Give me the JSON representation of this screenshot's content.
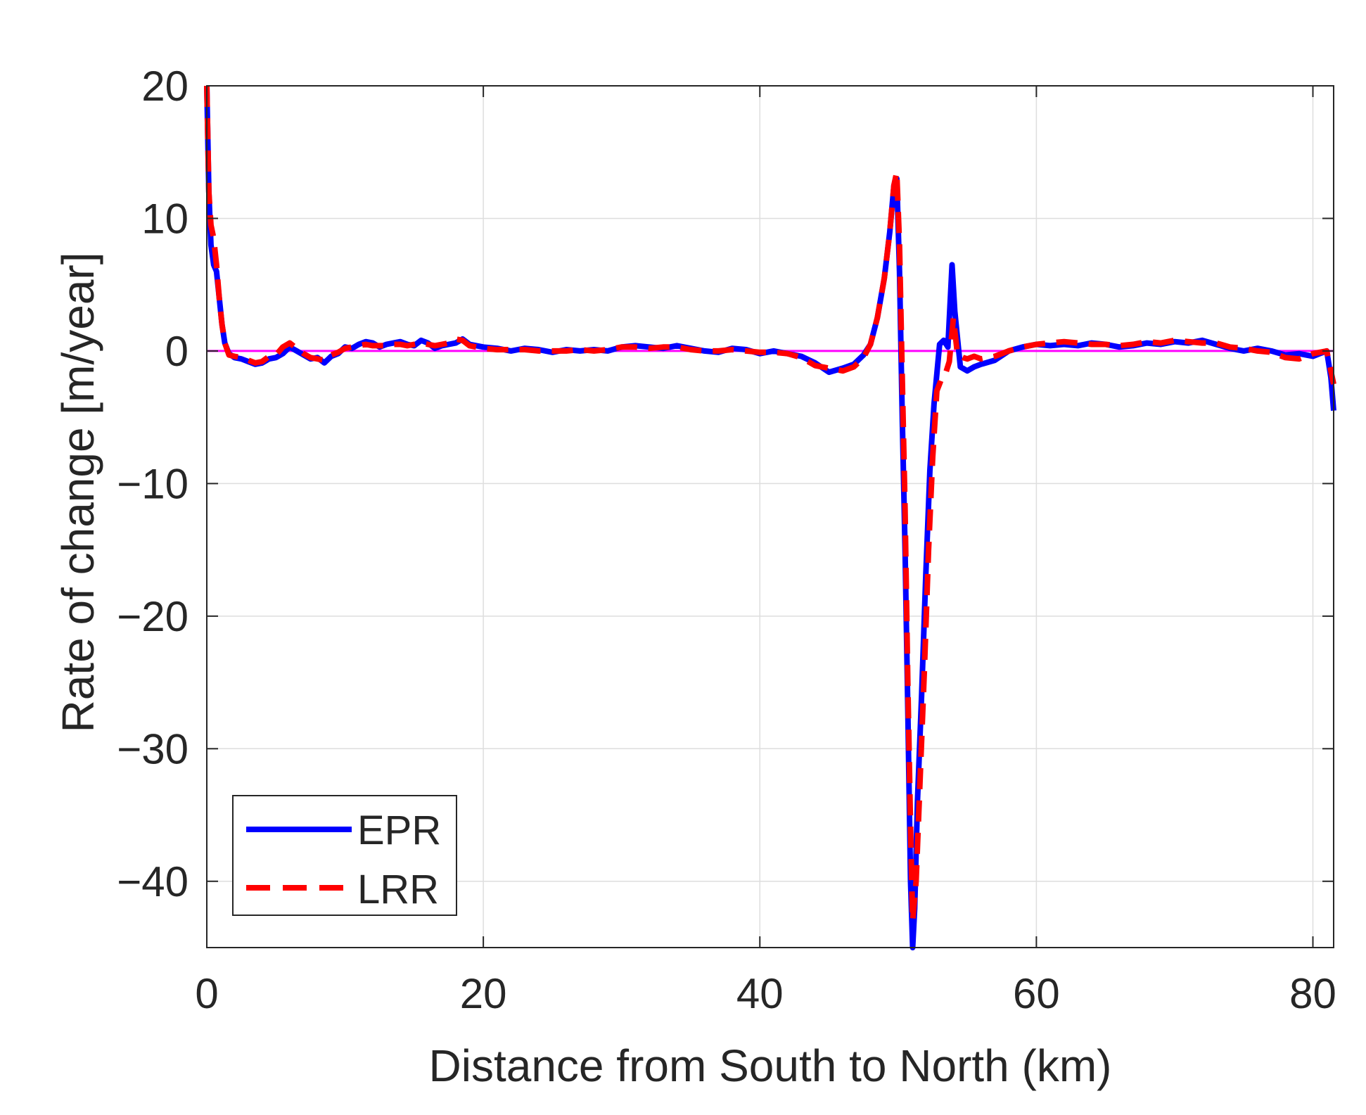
{
  "chart_data": {
    "type": "line",
    "title": "",
    "xlabel": "Distance from South to North (km)",
    "ylabel": "Rate of change [m/year]",
    "xlim": [
      0,
      81.5
    ],
    "ylim": [
      -45,
      20
    ],
    "xticks": [
      0,
      20,
      40,
      60,
      80
    ],
    "xtick_labels": [
      "0",
      "20",
      "40",
      "60",
      "80"
    ],
    "yticks": [
      20,
      10,
      0,
      -10,
      -20,
      -30,
      -40
    ],
    "ytick_labels": [
      "20",
      "10",
      "0",
      "−10",
      "−20",
      "−30",
      "−40"
    ],
    "grid": true,
    "legend_position": "bottom-left",
    "reference_line": {
      "y": 0,
      "color": "#ff00ff"
    },
    "series": [
      {
        "name": "EPR",
        "color": "#0000ff",
        "style": "solid",
        "points": [
          [
            0,
            20
          ],
          [
            0.15,
            12
          ],
          [
            0.3,
            8
          ],
          [
            0.5,
            6.5
          ],
          [
            0.7,
            6
          ],
          [
            0.9,
            4
          ],
          [
            1.1,
            2
          ],
          [
            1.3,
            0.6
          ],
          [
            1.6,
            -0.2
          ],
          [
            2,
            -0.5
          ],
          [
            2.5,
            -0.6
          ],
          [
            3,
            -0.8
          ],
          [
            3.5,
            -1
          ],
          [
            4,
            -0.9
          ],
          [
            4.5,
            -0.6
          ],
          [
            5,
            -0.5
          ],
          [
            5.5,
            -0.2
          ],
          [
            6,
            0.3
          ],
          [
            6.5,
            0
          ],
          [
            7,
            -0.3
          ],
          [
            7.5,
            -0.6
          ],
          [
            8,
            -0.5
          ],
          [
            8.5,
            -0.9
          ],
          [
            9,
            -0.4
          ],
          [
            9.5,
            -0.2
          ],
          [
            10,
            0.3
          ],
          [
            10.5,
            0.2
          ],
          [
            11,
            0.5
          ],
          [
            11.5,
            0.7
          ],
          [
            12,
            0.6
          ],
          [
            12.5,
            0.3
          ],
          [
            13,
            0.5
          ],
          [
            13.5,
            0.6
          ],
          [
            14,
            0.7
          ],
          [
            14.5,
            0.5
          ],
          [
            15,
            0.4
          ],
          [
            15.5,
            0.8
          ],
          [
            16,
            0.6
          ],
          [
            16.5,
            0.2
          ],
          [
            17,
            0.4
          ],
          [
            17.5,
            0.5
          ],
          [
            18,
            0.6
          ],
          [
            18.5,
            0.9
          ],
          [
            19,
            0.5
          ],
          [
            19.5,
            0.4
          ],
          [
            20,
            0.3
          ],
          [
            21,
            0.2
          ],
          [
            22,
            0
          ],
          [
            23,
            0.2
          ],
          [
            24,
            0.1
          ],
          [
            25,
            -0.1
          ],
          [
            26,
            0.1
          ],
          [
            27,
            0
          ],
          [
            28,
            0.1
          ],
          [
            29,
            0
          ],
          [
            30,
            0.3
          ],
          [
            31,
            0.4
          ],
          [
            32,
            0.3
          ],
          [
            33,
            0.2
          ],
          [
            34,
            0.4
          ],
          [
            35,
            0.2
          ],
          [
            36,
            0
          ],
          [
            37,
            -0.1
          ],
          [
            38,
            0.2
          ],
          [
            39,
            0.1
          ],
          [
            40,
            -0.2
          ],
          [
            41,
            0
          ],
          [
            42,
            -0.2
          ],
          [
            43,
            -0.4
          ],
          [
            44,
            -0.9
          ],
          [
            45,
            -1.6
          ],
          [
            46,
            -1.3
          ],
          [
            46.8,
            -1
          ],
          [
            47.5,
            -0.3
          ],
          [
            48,
            0.5
          ],
          [
            48.5,
            2.5
          ],
          [
            49,
            5.5
          ],
          [
            49.4,
            9
          ],
          [
            49.7,
            12.5
          ],
          [
            49.9,
            13
          ],
          [
            50.1,
            6
          ],
          [
            50.3,
            -5
          ],
          [
            50.5,
            -15
          ],
          [
            50.7,
            -27
          ],
          [
            50.9,
            -40
          ],
          [
            51.05,
            -45
          ],
          [
            51.2,
            -42
          ],
          [
            51.4,
            -34
          ],
          [
            51.7,
            -26
          ],
          [
            52,
            -17
          ],
          [
            52.3,
            -9
          ],
          [
            52.6,
            -4
          ],
          [
            53,
            0.5
          ],
          [
            53.3,
            0.8
          ],
          [
            53.6,
            0.3
          ],
          [
            53.9,
            6.5
          ],
          [
            54.1,
            3
          ],
          [
            54.5,
            -1.2
          ],
          [
            55,
            -1.5
          ],
          [
            55.5,
            -1.2
          ],
          [
            56,
            -1
          ],
          [
            57,
            -0.7
          ],
          [
            58,
            0
          ],
          [
            59,
            0.3
          ],
          [
            60,
            0.5
          ],
          [
            61,
            0.4
          ],
          [
            62,
            0.5
          ],
          [
            63,
            0.4
          ],
          [
            64,
            0.6
          ],
          [
            65,
            0.5
          ],
          [
            66,
            0.3
          ],
          [
            67,
            0.4
          ],
          [
            68,
            0.6
          ],
          [
            69,
            0.5
          ],
          [
            70,
            0.7
          ],
          [
            71,
            0.6
          ],
          [
            72,
            0.8
          ],
          [
            73,
            0.5
          ],
          [
            74,
            0.2
          ],
          [
            75,
            0
          ],
          [
            76,
            0.2
          ],
          [
            77,
            0
          ],
          [
            78,
            -0.3
          ],
          [
            79,
            -0.2
          ],
          [
            80,
            -0.4
          ],
          [
            80.5,
            -0.2
          ],
          [
            81,
            0
          ],
          [
            81.3,
            -2
          ],
          [
            81.5,
            -4.5
          ]
        ]
      },
      {
        "name": "LRR",
        "color": "#ff0000",
        "style": "dashed",
        "points": [
          [
            0,
            20
          ],
          [
            0.15,
            12
          ],
          [
            0.3,
            9.5
          ],
          [
            0.5,
            8.5
          ],
          [
            0.7,
            6.5
          ],
          [
            0.9,
            4
          ],
          [
            1.1,
            2
          ],
          [
            1.3,
            0.6
          ],
          [
            1.6,
            -0.3
          ],
          [
            2,
            -0.4
          ],
          [
            2.5,
            -0.5
          ],
          [
            3,
            -0.7
          ],
          [
            3.5,
            -0.9
          ],
          [
            4,
            -0.8
          ],
          [
            4.5,
            -0.4
          ],
          [
            5,
            -0.3
          ],
          [
            5.5,
            0.3
          ],
          [
            6,
            0.6
          ],
          [
            6.5,
            0.2
          ],
          [
            7,
            -0.2
          ],
          [
            7.5,
            -0.5
          ],
          [
            8,
            -0.6
          ],
          [
            8.5,
            -0.7
          ],
          [
            9,
            -0.3
          ],
          [
            9.5,
            -0.1
          ],
          [
            10,
            0.2
          ],
          [
            10.5,
            0.3
          ],
          [
            11,
            0.4
          ],
          [
            11.5,
            0.5
          ],
          [
            12,
            0.4
          ],
          [
            12.5,
            0.4
          ],
          [
            13,
            0.4
          ],
          [
            13.5,
            0.5
          ],
          [
            14,
            0.5
          ],
          [
            14.5,
            0.4
          ],
          [
            15,
            0.5
          ],
          [
            15.5,
            0.6
          ],
          [
            16,
            0.5
          ],
          [
            16.5,
            0.4
          ],
          [
            17,
            0.5
          ],
          [
            17.5,
            0.6
          ],
          [
            18,
            0.9
          ],
          [
            18.5,
            0.8
          ],
          [
            19,
            0.4
          ],
          [
            19.5,
            0.3
          ],
          [
            20,
            0.2
          ],
          [
            21,
            0.1
          ],
          [
            22,
            0.1
          ],
          [
            23,
            0.1
          ],
          [
            24,
            0
          ],
          [
            25,
            0
          ],
          [
            26,
            0
          ],
          [
            27,
            0.1
          ],
          [
            28,
            0
          ],
          [
            29,
            0.1
          ],
          [
            30,
            0.3
          ],
          [
            31,
            0.3
          ],
          [
            32,
            0.2
          ],
          [
            33,
            0.3
          ],
          [
            34,
            0.3
          ],
          [
            35,
            0.1
          ],
          [
            36,
            0
          ],
          [
            37,
            0
          ],
          [
            38,
            0.1
          ],
          [
            39,
            0
          ],
          [
            40,
            -0.1
          ],
          [
            41,
            -0.1
          ],
          [
            42,
            -0.2
          ],
          [
            43,
            -0.5
          ],
          [
            44,
            -1.1
          ],
          [
            45,
            -1.3
          ],
          [
            46,
            -1.5
          ],
          [
            46.8,
            -1.2
          ],
          [
            47.5,
            -0.5
          ],
          [
            48,
            0.5
          ],
          [
            48.5,
            2.5
          ],
          [
            49,
            5.5
          ],
          [
            49.4,
            9
          ],
          [
            49.7,
            12.5
          ],
          [
            49.9,
            13.5
          ],
          [
            50.1,
            8
          ],
          [
            50.3,
            -2
          ],
          [
            50.5,
            -12
          ],
          [
            50.7,
            -25
          ],
          [
            50.9,
            -36
          ],
          [
            51.05,
            -43
          ],
          [
            51.3,
            -40
          ],
          [
            51.6,
            -32
          ],
          [
            51.9,
            -24
          ],
          [
            52.2,
            -15
          ],
          [
            52.5,
            -8
          ],
          [
            52.8,
            -3
          ],
          [
            53.1,
            -2.2
          ],
          [
            53.4,
            -1.8
          ],
          [
            53.7,
            -0.8
          ],
          [
            54,
            2.5
          ],
          [
            54.3,
            -0.3
          ],
          [
            54.7,
            -0.5
          ],
          [
            55,
            -0.6
          ],
          [
            55.5,
            -0.4
          ],
          [
            56,
            -0.6
          ],
          [
            57,
            -0.4
          ],
          [
            58,
            0
          ],
          [
            59,
            0.3
          ],
          [
            60,
            0.5
          ],
          [
            61,
            0.6
          ],
          [
            62,
            0.7
          ],
          [
            63,
            0.6
          ],
          [
            64,
            0.5
          ],
          [
            65,
            0.5
          ],
          [
            66,
            0.4
          ],
          [
            67,
            0.5
          ],
          [
            68,
            0.7
          ],
          [
            69,
            0.6
          ],
          [
            70,
            0.8
          ],
          [
            71,
            0.7
          ],
          [
            72,
            0.6
          ],
          [
            73,
            0.6
          ],
          [
            74,
            0.3
          ],
          [
            75,
            0.2
          ],
          [
            76,
            0
          ],
          [
            77,
            -0.1
          ],
          [
            78,
            -0.5
          ],
          [
            79,
            -0.6
          ],
          [
            80,
            -0.2
          ],
          [
            80.5,
            -0.1
          ],
          [
            81,
            0
          ],
          [
            81.3,
            -1.5
          ],
          [
            81.5,
            -2.5
          ]
        ]
      }
    ]
  }
}
